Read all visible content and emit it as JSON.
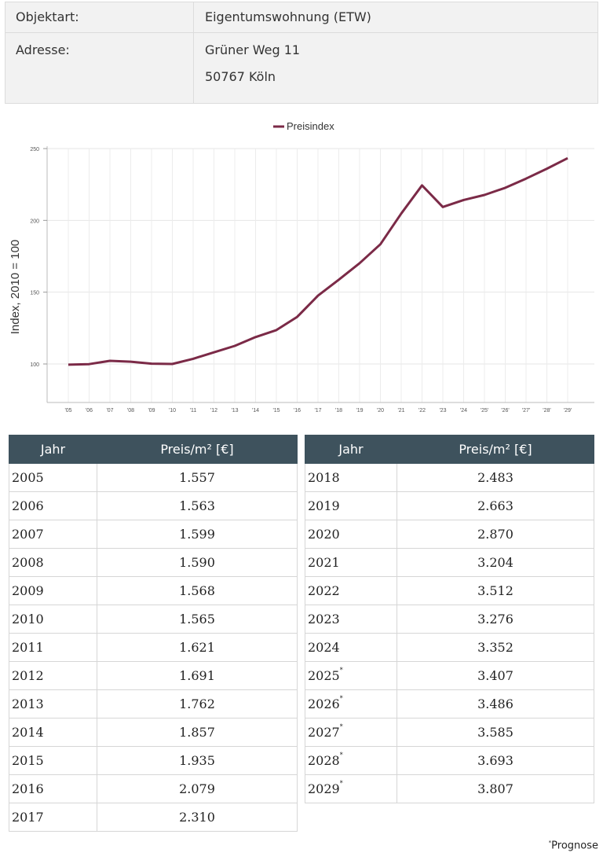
{
  "property": {
    "rows": [
      {
        "label": "Objektart:",
        "value": "Eigentumswohnung (ETW)"
      },
      {
        "label": "Adresse:",
        "street": "Grüner Weg 11",
        "city": "50767 Köln"
      }
    ]
  },
  "chart_data": {
    "type": "line",
    "ylabel": "Index, 2010 = 100",
    "xlabel": "",
    "ylim": [
      100,
      250
    ],
    "yticks": [
      100,
      150,
      200,
      250
    ],
    "grid": true,
    "legend_position": "top-center",
    "categories": [
      "'05",
      "'06",
      "'07",
      "'08",
      "'09",
      "'10",
      "'11",
      "'12",
      "'13",
      "'14",
      "'15",
      "'16",
      "'17",
      "'18",
      "'19",
      "'20",
      "'21",
      "'22",
      "'23",
      "'24",
      "'25'",
      "'26'",
      "'27'",
      "'28'",
      "'29'"
    ],
    "series": [
      {
        "name": "Preisindex",
        "color": "#7b2a47",
        "values": [
          99.5,
          99.9,
          102.2,
          101.6,
          100.2,
          100.0,
          103.6,
          108.1,
          112.6,
          118.7,
          123.6,
          132.8,
          147.6,
          158.7,
          170.2,
          183.4,
          204.7,
          224.4,
          209.3,
          214.2,
          217.7,
          222.7,
          229.1,
          236.0,
          243.3
        ]
      }
    ]
  },
  "price_table": {
    "header_year": "Jahr",
    "header_price": "Preis/m² [€]",
    "left": [
      {
        "year": "2005",
        "price": "1.557"
      },
      {
        "year": "2006",
        "price": "1.563"
      },
      {
        "year": "2007",
        "price": "1.599"
      },
      {
        "year": "2008",
        "price": "1.590"
      },
      {
        "year": "2009",
        "price": "1.568"
      },
      {
        "year": "2010",
        "price": "1.565"
      },
      {
        "year": "2011",
        "price": "1.621"
      },
      {
        "year": "2012",
        "price": "1.691"
      },
      {
        "year": "2013",
        "price": "1.762"
      },
      {
        "year": "2014",
        "price": "1.857"
      },
      {
        "year": "2015",
        "price": "1.935"
      },
      {
        "year": "2016",
        "price": "2.079"
      },
      {
        "year": "2017",
        "price": "2.310"
      }
    ],
    "right": [
      {
        "year": "2018",
        "price": "2.483"
      },
      {
        "year": "2019",
        "price": "2.663"
      },
      {
        "year": "2020",
        "price": "2.870"
      },
      {
        "year": "2021",
        "price": "3.204"
      },
      {
        "year": "2022",
        "price": "3.512"
      },
      {
        "year": "2023",
        "price": "3.276"
      },
      {
        "year": "2024",
        "price": "3.352"
      },
      {
        "year": "2025",
        "price": "3.407",
        "forecast": true
      },
      {
        "year": "2026",
        "price": "3.486",
        "forecast": true
      },
      {
        "year": "2027",
        "price": "3.585",
        "forecast": true
      },
      {
        "year": "2028",
        "price": "3.693",
        "forecast": true
      },
      {
        "year": "2029",
        "price": "3.807",
        "forecast": true
      }
    ]
  },
  "footnote": {
    "marker": "*",
    "text": "Prognose"
  }
}
